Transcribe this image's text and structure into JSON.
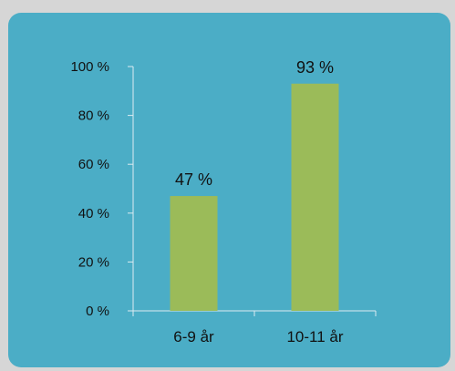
{
  "chart_data": {
    "type": "bar",
    "categories": [
      "6-9 år",
      "10-11 år"
    ],
    "values": [
      47,
      93
    ],
    "data_labels": [
      "47 %",
      "93 %"
    ],
    "yticks": [
      0,
      20,
      40,
      60,
      80,
      100
    ],
    "ytick_labels": [
      "0 %",
      "20 %",
      "40 %",
      "60 %",
      "80 %",
      "100 %"
    ],
    "ylim": [
      0,
      100
    ],
    "title": "",
    "xlabel": "",
    "ylabel": "",
    "grid": false,
    "legend": "none"
  },
  "colors": {
    "background": "#d6d6d6",
    "card": "#4badc6",
    "bar": "#9bbb59",
    "axis": "#dcecf2"
  }
}
